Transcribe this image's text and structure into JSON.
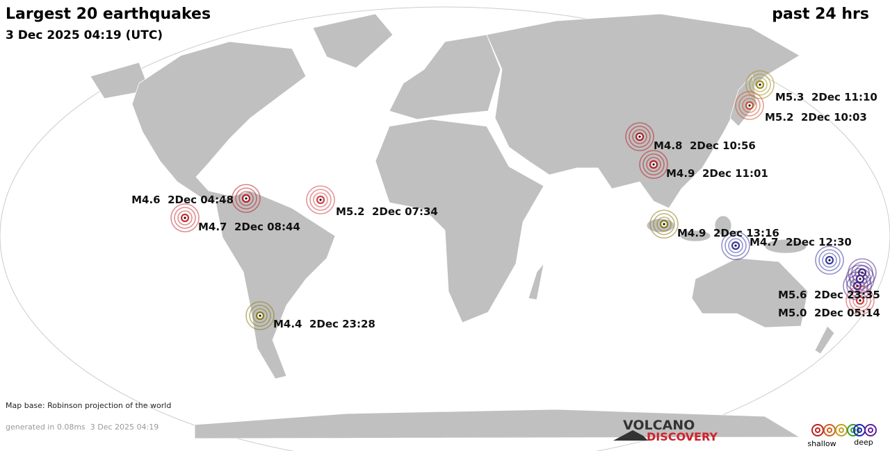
{
  "header": {
    "title": "Largest 20 earthquakes",
    "subtitle": "3 Dec 2025 04:19 (UTC)",
    "period": "past 24 hrs"
  },
  "quakes": [
    {
      "label": "M5.3  2Dec 11:10",
      "color": "#a0901c"
    },
    {
      "label": "M5.2  2Dec 10:03",
      "color": "#d0502c"
    },
    {
      "label": "M4.8  2Dec 10:56",
      "color": "#b82026"
    },
    {
      "label": "M4.9  2Dec 11:01",
      "color": "#b82026"
    },
    {
      "label": "M4.6  2Dec 04:48",
      "color": "#b82026"
    },
    {
      "label": "M4.7  2Dec 08:44",
      "color": "#c83034"
    },
    {
      "label": "M5.2  2Dec 07:34",
      "color": "#d04044"
    },
    {
      "label": "M4.9  2Dec 13:16",
      "color": "#8a7a18"
    },
    {
      "label": "M4.7  2Dec 12:30",
      "color": "#3a3aa8"
    },
    {
      "label": "M5.6  2Dec 23:35",
      "color": "#4a2a88"
    },
    {
      "label": "M5.0  2Dec 05:14",
      "color": "#d04044"
    },
    {
      "label": "M4.4  2Dec 23:28",
      "color": "#8a7a18"
    }
  ],
  "footer": {
    "map_base": "Map base: Robinson projection of the world",
    "generated": "generated in 0.08ms  3 Dec 2025 04:19"
  },
  "logo": {
    "line1": "VOLCANO",
    "line2": "DISCOVERY"
  },
  "legend": {
    "shallow": "shallow",
    "deep": "deep"
  }
}
